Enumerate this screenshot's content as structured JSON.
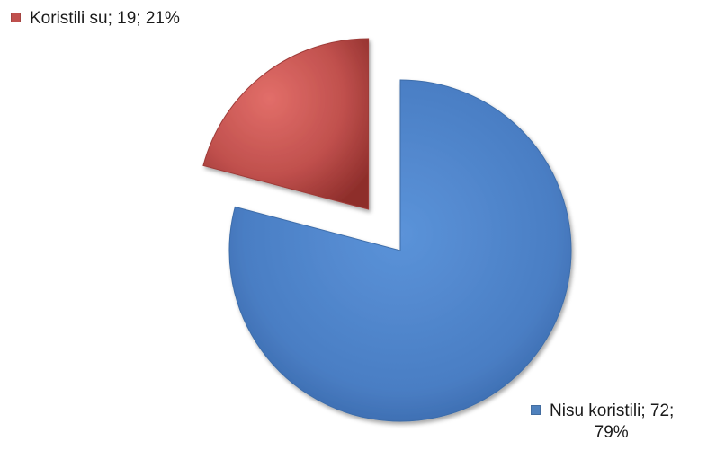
{
  "chart_data": {
    "type": "pie",
    "title": "",
    "exploded": true,
    "slices": [
      {
        "label": "Koristili su",
        "value": 19,
        "percent": 21,
        "color": "#C0504D"
      },
      {
        "label": "Nisu koristili",
        "value": 72,
        "percent": 79,
        "color": "#4F81BD"
      }
    ],
    "data_labels": [
      {
        "text": "Koristili su; 19; 21%"
      },
      {
        "line1": "Nisu koristili; 72;",
        "line2": "79%"
      }
    ]
  }
}
